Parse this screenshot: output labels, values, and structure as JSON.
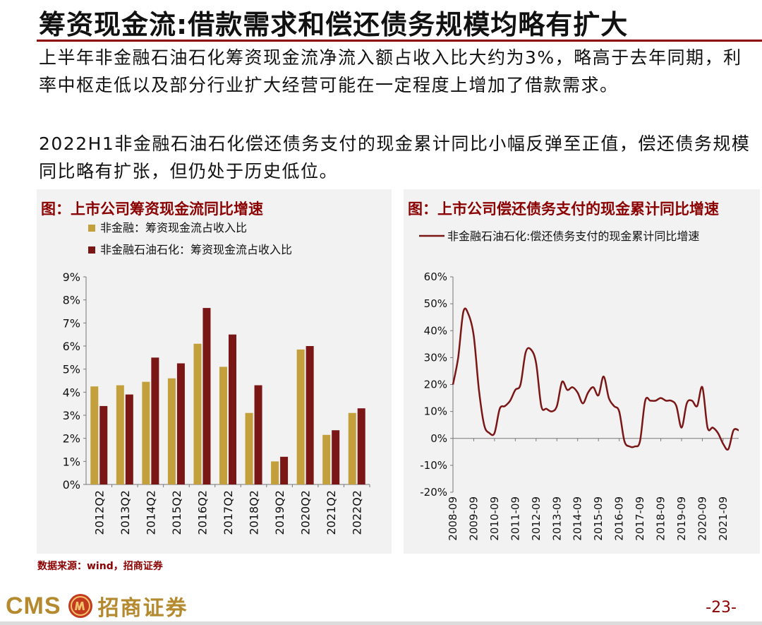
{
  "header": {
    "title": "筹资现金流:借款需求和偿还债务规模均略有扩大"
  },
  "paragraphs": {
    "p1": "上半年非金融石油石化筹资现金流净流入额占收入比大约为3%，略高于去年同期，利率中枢走低以及部分行业扩大经营可能在一定程度上增加了借款需求。",
    "p2": "2022H1非金融石油石化偿还债务支付的现金累计同比小幅反弹至正值，偿还债务规模同比略有扩张，但仍处于历史低位。"
  },
  "source": "数据来源：wind，招商证券",
  "footer": {
    "brand_en": "CMS",
    "brand_cn": "招商证券",
    "page": "-23-"
  },
  "chart_data": [
    {
      "type": "bar",
      "title": "图：上市公司筹资现金流同比增速",
      "categories": [
        "2012Q2",
        "2013Q2",
        "2014Q2",
        "2015Q2",
        "2016Q2",
        "2017Q2",
        "2018Q2",
        "2019Q2",
        "2020Q2",
        "2021Q2",
        "2022Q2"
      ],
      "series": [
        {
          "name": "非金融：筹资现金流占收入比",
          "color": "#c4a03c",
          "values": [
            4.25,
            4.3,
            4.45,
            4.6,
            6.1,
            5.1,
            3.1,
            1.0,
            5.85,
            2.15,
            3.1
          ]
        },
        {
          "name": "非金融石油石化：筹资现金流占收入比",
          "color": "#7b1616",
          "values": [
            3.4,
            3.9,
            5.5,
            5.25,
            7.65,
            6.5,
            4.3,
            1.2,
            6.0,
            2.35,
            3.3
          ]
        }
      ],
      "ylim": [
        0,
        9
      ],
      "yticks": [
        "0%",
        "1%",
        "2%",
        "3%",
        "4%",
        "5%",
        "6%",
        "7%",
        "8%",
        "9%"
      ],
      "legend": "top-left"
    },
    {
      "type": "line",
      "title": "图：上市公司偿还债务支付的现金累计同比增速",
      "series": [
        {
          "name": "非金融石油石化:偿还债务支付的现金累计同比增速",
          "color": "#7b1616",
          "x": [
            "2008-09",
            "2008-12",
            "2009-03",
            "2009-06",
            "2009-09",
            "2009-12",
            "2010-03",
            "2010-06",
            "2010-09",
            "2010-12",
            "2011-03",
            "2011-06",
            "2011-09",
            "2011-12",
            "2012-03",
            "2012-06",
            "2012-09",
            "2012-12",
            "2013-03",
            "2013-06",
            "2013-09",
            "2013-12",
            "2014-03",
            "2014-06",
            "2014-09",
            "2014-12",
            "2015-03",
            "2015-06",
            "2015-09",
            "2015-12",
            "2016-03",
            "2016-06",
            "2016-09",
            "2016-12",
            "2017-03",
            "2017-06",
            "2017-09",
            "2017-12",
            "2018-03",
            "2018-06",
            "2018-09",
            "2018-12",
            "2019-03",
            "2019-06",
            "2019-09",
            "2019-12",
            "2020-03",
            "2020-06",
            "2020-09",
            "2020-12",
            "2021-03",
            "2021-06",
            "2021-09",
            "2021-12",
            "2022-03",
            "2022-06"
          ],
          "values": [
            20,
            30,
            47,
            46,
            38,
            18,
            5,
            2,
            2,
            11,
            12,
            14,
            18,
            20,
            32,
            33,
            28,
            12,
            11,
            10,
            12,
            21,
            18,
            19,
            17,
            13,
            17,
            19,
            16,
            23,
            15,
            12,
            10,
            -1,
            -3,
            -3,
            -1,
            14,
            14,
            14,
            15,
            14,
            14,
            12,
            4,
            13,
            14,
            12,
            19,
            4,
            4,
            2,
            -2,
            -4,
            3,
            3
          ]
        }
      ],
      "ylim": [
        -20,
        60
      ],
      "yticks": [
        "-20%",
        "-10%",
        "0%",
        "10%",
        "20%",
        "30%",
        "40%",
        "50%",
        "60%"
      ],
      "xticks": [
        "2008-09",
        "2009-09",
        "2010-09",
        "2011-09",
        "2012-09",
        "2013-09",
        "2014-09",
        "2015-09",
        "2016-09",
        "2017-09",
        "2018-09",
        "2019-09",
        "2020-09",
        "2021-09"
      ],
      "legend": "top-left"
    }
  ]
}
